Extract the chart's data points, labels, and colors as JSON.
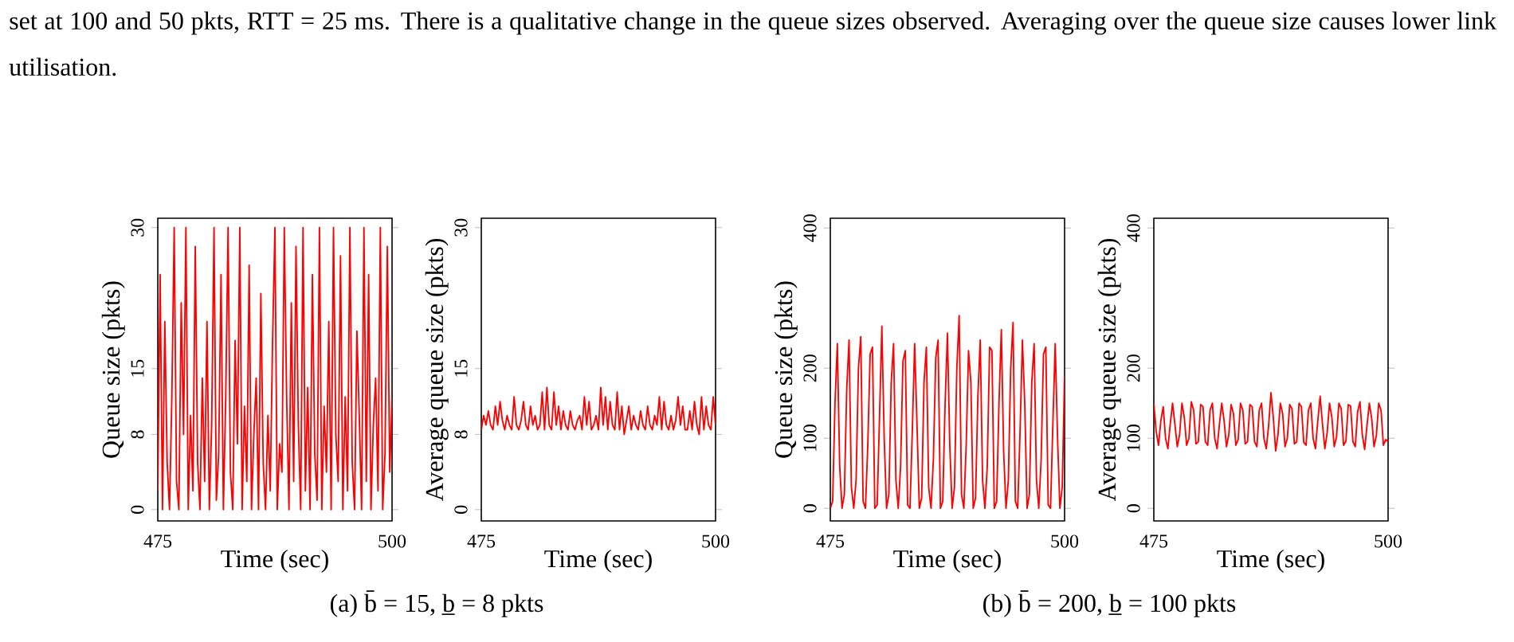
{
  "chart_data": [
    {
      "type": "line",
      "xlabel": "Time (sec)",
      "ylabel": "Queue size (pkts)",
      "color": "#ff0000",
      "xlim": [
        475,
        500
      ],
      "ylim": [
        -1.2,
        31
      ],
      "xticks": [
        475,
        500
      ],
      "yticks": [
        0,
        8,
        15,
        30
      ],
      "annotations": [
        "set at 100 and 50 pkts, RTT = 25 ms. There is a qualitative change in the queue sizes observed. Averaging over the queue size causes lower link utilisation.",
        "(a) b̄ = 15, b̲ = 8 pkts"
      ],
      "x": [
        475,
        475.25,
        475.5,
        475.75,
        476,
        476.25,
        476.5,
        476.75,
        477,
        477.25,
        477.5,
        477.75,
        478,
        478.25,
        478.5,
        478.75,
        479,
        479.25,
        479.5,
        479.75,
        480,
        480.25,
        480.5,
        480.75,
        481,
        481.25,
        481.5,
        481.75,
        482,
        482.25,
        482.5,
        482.75,
        483,
        483.25,
        483.5,
        483.75,
        484,
        484.25,
        484.5,
        484.75,
        485,
        485.25,
        485.5,
        485.75,
        486,
        486.25,
        486.5,
        486.75,
        487,
        487.25,
        487.5,
        487.75,
        488,
        488.25,
        488.5,
        488.75,
        489,
        489.25,
        489.5,
        489.75,
        490,
        490.25,
        490.5,
        490.75,
        491,
        491.25,
        491.5,
        491.75,
        492,
        492.25,
        492.5,
        492.75,
        493,
        493.25,
        493.5,
        493.75,
        494,
        494.25,
        494.5,
        494.75,
        495,
        495.25,
        495.5,
        495.75,
        496,
        496.25,
        496.5,
        496.75,
        497,
        497.25,
        497.5,
        497.75,
        498,
        498.25,
        498.5,
        498.75,
        499,
        499.25,
        499.5,
        499.75,
        500
      ],
      "values": [
        2,
        25,
        0,
        20,
        5,
        0,
        12,
        30,
        3,
        0,
        22,
        8,
        30,
        0,
        10,
        2,
        28,
        5,
        0,
        14,
        3,
        20,
        0,
        9,
        30,
        1,
        6,
        25,
        0,
        12,
        30,
        4,
        0,
        18,
        7,
        30,
        0,
        11,
        3,
        26,
        0,
        8,
        14,
        0,
        23,
        5,
        0,
        10,
        2,
        18,
        30,
        0,
        7,
        4,
        30,
        12,
        0,
        22,
        3,
        28,
        9,
        0,
        30,
        2,
        13,
        0,
        25,
        6,
        1,
        30,
        0,
        11,
        4,
        20,
        0,
        30,
        8,
        3,
        27,
        0,
        12,
        2,
        30,
        5,
        0,
        19,
        10,
        0,
        30,
        3,
        25,
        0,
        9,
        14,
        2,
        30,
        0,
        6,
        28,
        4,
        12
      ]
    },
    {
      "type": "line",
      "xlabel": "Time (sec)",
      "ylabel": "Average queue size (pkts)",
      "color": "#ff0000",
      "xlim": [
        475,
        500
      ],
      "ylim": [
        -1.2,
        31
      ],
      "xticks": [
        475,
        500
      ],
      "yticks": [
        0,
        8,
        15,
        30
      ],
      "x": [
        475,
        475.25,
        475.5,
        475.75,
        476,
        476.25,
        476.5,
        476.75,
        477,
        477.25,
        477.5,
        477.75,
        478,
        478.25,
        478.5,
        478.75,
        479,
        479.25,
        479.5,
        479.75,
        480,
        480.25,
        480.5,
        480.75,
        481,
        481.25,
        481.5,
        481.75,
        482,
        482.25,
        482.5,
        482.75,
        483,
        483.25,
        483.5,
        483.75,
        484,
        484.25,
        484.5,
        484.75,
        485,
        485.25,
        485.5,
        485.75,
        486,
        486.25,
        486.5,
        486.75,
        487,
        487.25,
        487.5,
        487.75,
        488,
        488.25,
        488.5,
        488.75,
        489,
        489.25,
        489.5,
        489.75,
        490,
        490.25,
        490.5,
        490.75,
        491,
        491.25,
        491.5,
        491.75,
        492,
        492.25,
        492.5,
        492.75,
        493,
        493.25,
        493.5,
        493.75,
        494,
        494.25,
        494.5,
        494.75,
        495,
        495.25,
        495.5,
        495.75,
        496,
        496.25,
        496.5,
        496.75,
        497,
        497.25,
        497.5,
        497.75,
        498,
        498.25,
        498.5,
        498.75,
        499,
        499.25,
        499.5,
        499.75,
        500
      ],
      "values": [
        8.5,
        10,
        9,
        10.5,
        9,
        8.5,
        11,
        9,
        11.5,
        9.5,
        8.5,
        10,
        9,
        8.5,
        12,
        9,
        8.5,
        9.5,
        11.5,
        9,
        8.5,
        11,
        9,
        10,
        8.5,
        9,
        12.5,
        8.5,
        13,
        9,
        8.5,
        12.5,
        9,
        11,
        8.5,
        10.5,
        9,
        8.5,
        10.5,
        9,
        8.5,
        9.5,
        10,
        8.5,
        12,
        9,
        11.5,
        8.5,
        9,
        10,
        8.5,
        13,
        9,
        12,
        8.5,
        11.5,
        9,
        8.5,
        12.5,
        8.5,
        11,
        8,
        9.5,
        11,
        8.5,
        10,
        9,
        8.5,
        10.5,
        9,
        8.5,
        11,
        9,
        8.5,
        10,
        9,
        12,
        8.5,
        11.5,
        9,
        8.5,
        10,
        8.5,
        9.5,
        12,
        9,
        11,
        8.5,
        8.5,
        10.5,
        8.5,
        11.5,
        9,
        8,
        12,
        8.5,
        11,
        9,
        8.5,
        12,
        9
      ]
    },
    {
      "type": "line",
      "xlabel": "Time (sec)",
      "ylabel": "Queue size (pkts)",
      "color": "#ff0000",
      "xlim": [
        475,
        500
      ],
      "ylim": [
        -18,
        414
      ],
      "xticks": [
        475,
        500
      ],
      "yticks": [
        0,
        100,
        200,
        400
      ],
      "annotations": [
        "(b) b̄ = 200, b̲ = 100 pkts"
      ],
      "x": [
        475,
        475.25,
        475.5,
        475.75,
        476,
        476.25,
        476.5,
        476.75,
        477,
        477.25,
        477.5,
        477.75,
        478,
        478.25,
        478.5,
        478.75,
        479,
        479.25,
        479.5,
        479.75,
        480,
        480.25,
        480.5,
        480.75,
        481,
        481.25,
        481.5,
        481.75,
        482,
        482.25,
        482.5,
        482.75,
        483,
        483.25,
        483.5,
        483.75,
        484,
        484.25,
        484.5,
        484.75,
        485,
        485.25,
        485.5,
        485.75,
        486,
        486.25,
        486.5,
        486.75,
        487,
        487.25,
        487.5,
        487.75,
        488,
        488.25,
        488.5,
        488.75,
        489,
        489.25,
        489.5,
        489.75,
        490,
        490.25,
        490.5,
        490.75,
        491,
        491.25,
        491.5,
        491.75,
        492,
        492.25,
        492.5,
        492.75,
        493,
        493.25,
        493.5,
        493.75,
        494,
        494.25,
        494.5,
        494.75,
        495,
        495.25,
        495.5,
        495.75,
        496,
        496.25,
        496.5,
        496.75,
        497,
        497.25,
        497.5,
        497.75,
        498,
        498.25,
        498.5,
        498.75,
        499,
        499.25,
        499.5,
        499.75,
        500
      ],
      "values": [
        0,
        10,
        150,
        235,
        60,
        0,
        20,
        170,
        240,
        30,
        0,
        40,
        200,
        245,
        10,
        0,
        90,
        220,
        230,
        0,
        5,
        130,
        260,
        100,
        0,
        20,
        180,
        235,
        40,
        0,
        60,
        210,
        225,
        5,
        0,
        110,
        235,
        120,
        0,
        15,
        180,
        230,
        30,
        0,
        70,
        215,
        240,
        0,
        10,
        150,
        250,
        90,
        0,
        30,
        200,
        275,
        20,
        0,
        90,
        225,
        180,
        0,
        15,
        160,
        240,
        40,
        0,
        60,
        230,
        225,
        0,
        10,
        150,
        255,
        80,
        0,
        40,
        200,
        265,
        10,
        0,
        110,
        240,
        150,
        0,
        20,
        180,
        235,
        40,
        0,
        70,
        220,
        230,
        5,
        0,
        120,
        235,
        100,
        0,
        30,
        190
      ]
    },
    {
      "type": "line",
      "xlabel": "Time (sec)",
      "ylabel": "Average queue size (pkts)",
      "color": "#ff0000",
      "xlim": [
        475,
        500
      ],
      "ylim": [
        -18,
        414
      ],
      "xticks": [
        475,
        500
      ],
      "yticks": [
        0,
        100,
        200,
        400
      ],
      "x": [
        475,
        475.25,
        475.5,
        475.75,
        476,
        476.25,
        476.5,
        476.75,
        477,
        477.25,
        477.5,
        477.75,
        478,
        478.25,
        478.5,
        478.75,
        479,
        479.25,
        479.5,
        479.75,
        480,
        480.25,
        480.5,
        480.75,
        481,
        481.25,
        481.5,
        481.75,
        482,
        482.25,
        482.5,
        482.75,
        483,
        483.25,
        483.5,
        483.75,
        484,
        484.25,
        484.5,
        484.75,
        485,
        485.25,
        485.5,
        485.75,
        486,
        486.25,
        486.5,
        486.75,
        487,
        487.25,
        487.5,
        487.75,
        488,
        488.25,
        488.5,
        488.75,
        489,
        489.25,
        489.5,
        489.75,
        490,
        490.25,
        490.5,
        490.75,
        491,
        491.25,
        491.5,
        491.75,
        492,
        492.25,
        492.5,
        492.75,
        493,
        493.25,
        493.5,
        493.75,
        494,
        494.25,
        494.5,
        494.75,
        495,
        495.25,
        495.5,
        495.75,
        496,
        496.25,
        496.5,
        496.75,
        497,
        497.25,
        497.5,
        497.75,
        498,
        498.25,
        498.5,
        498.75,
        499,
        499.25,
        499.5,
        499.75,
        500
      ],
      "values": [
        150,
        110,
        90,
        125,
        145,
        100,
        85,
        120,
        150,
        120,
        88,
        105,
        150,
        130,
        90,
        100,
        152,
        140,
        92,
        95,
        148,
        145,
        95,
        90,
        140,
        150,
        100,
        85,
        120,
        150,
        125,
        88,
        105,
        148,
        135,
        90,
        98,
        150,
        140,
        92,
        95,
        148,
        145,
        95,
        88,
        140,
        150,
        100,
        85,
        118,
        165,
        130,
        82,
        105,
        150,
        135,
        88,
        100,
        148,
        142,
        92,
        95,
        150,
        145,
        94,
        90,
        140,
        150,
        100,
        85,
        125,
        160,
        120,
        85,
        108,
        150,
        130,
        88,
        102,
        150,
        142,
        90,
        96,
        148,
        146,
        95,
        88,
        138,
        152,
        105,
        84,
        118,
        150,
        128,
        88,
        104,
        150,
        140,
        90,
        98,
        95
      ]
    }
  ]
}
